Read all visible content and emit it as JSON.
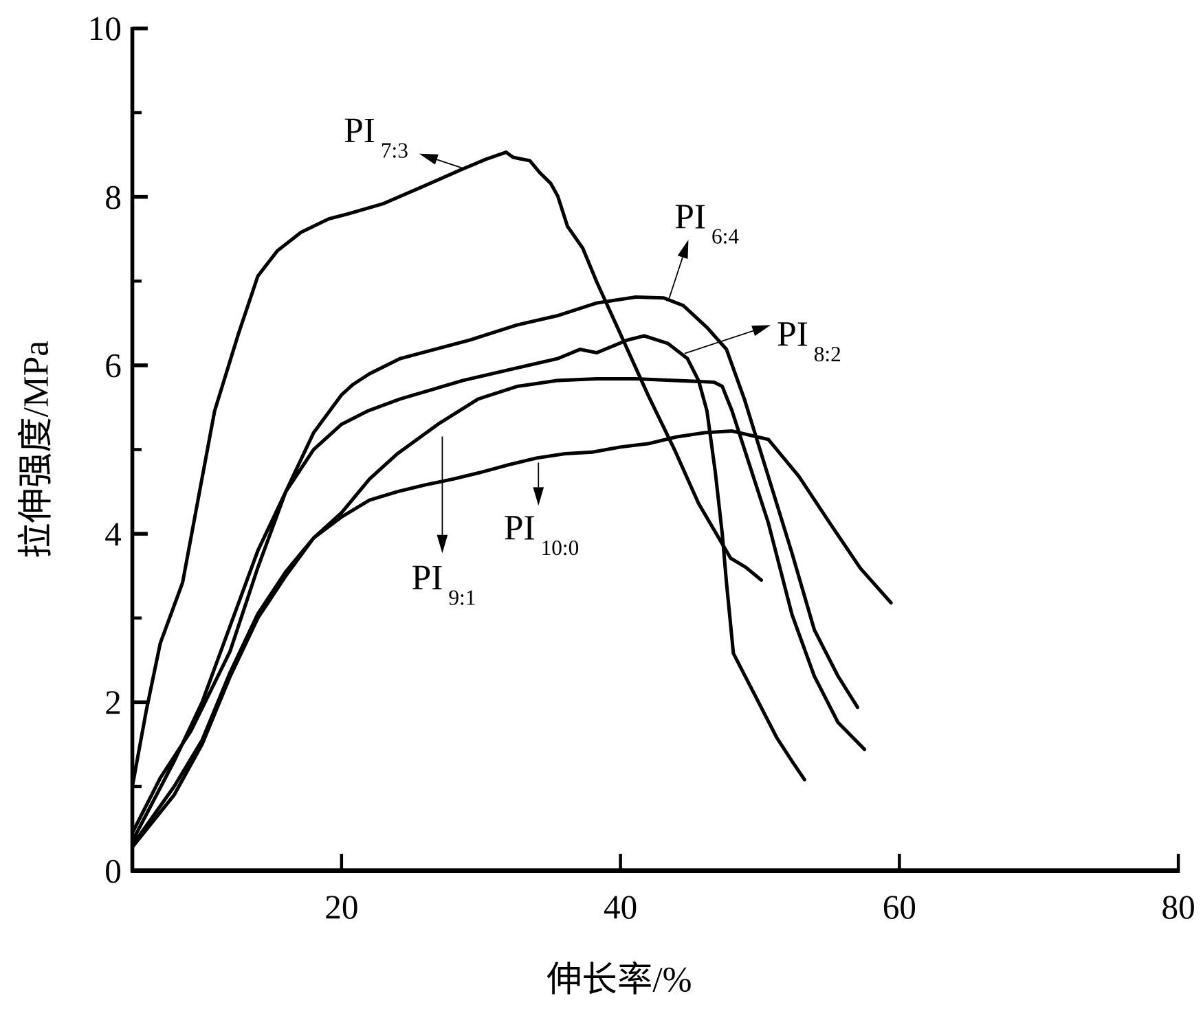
{
  "chart_data": {
    "type": "line",
    "title": "",
    "xlabel": "伸长率/%",
    "ylabel": "拉伸强度/MPa",
    "xlim": [
      5,
      80
    ],
    "ylim": [
      0,
      10
    ],
    "xticks": [
      20,
      40,
      60,
      80
    ],
    "yticks": [
      0,
      2,
      4,
      6,
      8,
      10
    ],
    "y_minor_step": 1,
    "grid": false,
    "legend": "none (inline arrow annotations)",
    "series": [
      {
        "name": "PI7:3",
        "label_main": "PI",
        "label_sub": "7:3",
        "x": [
          5,
          6,
          7,
          8.6,
          10.9,
          12.6,
          14.0,
          15.4,
          17.1,
          19.1,
          20.5,
          23.0,
          25.8,
          28.4,
          30.4,
          31.8,
          32.3,
          33.5,
          34.2,
          35.0,
          35.5,
          36.2,
          37.3,
          38.3,
          40.0,
          42.0,
          43.9,
          45.6,
          47.9,
          49.0,
          50.1
        ],
        "y": [
          1.0,
          1.9,
          2.7,
          3.42,
          5.46,
          6.37,
          7.06,
          7.36,
          7.58,
          7.74,
          7.8,
          7.92,
          8.12,
          8.31,
          8.45,
          8.53,
          8.47,
          8.43,
          8.29,
          8.16,
          8.01,
          7.65,
          7.39,
          6.99,
          6.37,
          5.64,
          4.99,
          4.36,
          3.71,
          3.6,
          3.45
        ]
      },
      {
        "name": "PI6:4",
        "label_main": "PI",
        "label_sub": "6:4",
        "x": [
          5,
          7,
          9.2,
          12,
          14,
          16,
          18,
          20,
          20.8,
          22,
          24.2,
          29.2,
          32.6,
          35.5,
          38.3,
          41.1,
          43.1,
          44.5,
          46.2,
          47.6,
          48.9,
          50.6,
          52.3,
          53.9,
          55.6,
          57.0
        ],
        "y": [
          0.45,
          1.1,
          1.66,
          2.6,
          3.6,
          4.5,
          5.2,
          5.65,
          5.77,
          5.9,
          6.08,
          6.3,
          6.48,
          6.59,
          6.74,
          6.81,
          6.8,
          6.71,
          6.45,
          6.19,
          5.59,
          4.68,
          3.77,
          2.86,
          2.31,
          1.94
        ]
      },
      {
        "name": "PI8:2",
        "label_main": "PI",
        "label_sub": "8:2",
        "x": [
          5,
          8,
          10,
          12,
          14,
          16,
          18,
          20,
          21.9,
          24.2,
          28.7,
          32.6,
          35.5,
          37.1,
          38.3,
          40.5,
          41.7,
          43.4,
          44.8,
          45.6,
          46.2,
          46.8,
          47.3,
          47.6,
          48.1,
          49.5,
          51.2,
          52.3,
          53.2
        ],
        "y": [
          0.35,
          1.3,
          2.0,
          2.9,
          3.8,
          4.5,
          5.0,
          5.3,
          5.46,
          5.6,
          5.82,
          5.97,
          6.08,
          6.19,
          6.15,
          6.3,
          6.35,
          6.26,
          6.08,
          5.82,
          5.46,
          4.73,
          4.0,
          3.42,
          2.58,
          2.13,
          1.58,
          1.3,
          1.08
        ]
      },
      {
        "name": "PI9:1",
        "label_main": "PI",
        "label_sub": "9:1",
        "x": [
          5,
          8,
          10,
          12,
          14,
          16,
          18,
          20,
          22,
          24,
          27,
          29.8,
          32.6,
          35.5,
          38.3,
          41.1,
          43.9,
          46.7,
          47.3,
          48,
          50.6,
          52.3,
          53.9,
          55.6,
          57.5
        ],
        "y": [
          0.28,
          0.9,
          1.5,
          2.3,
          3.0,
          3.5,
          3.95,
          4.25,
          4.65,
          4.95,
          5.31,
          5.6,
          5.75,
          5.82,
          5.84,
          5.84,
          5.82,
          5.8,
          5.75,
          5.46,
          4.13,
          3.04,
          2.31,
          1.76,
          1.44
        ]
      },
      {
        "name": "PI10:0",
        "label_main": "PI",
        "label_sub": "10:0",
        "x": [
          5,
          8,
          10,
          12,
          14,
          16,
          18,
          20,
          22,
          24,
          26,
          28,
          30,
          32,
          34,
          36,
          38,
          40,
          42,
          44,
          46,
          48,
          50.6,
          52.8,
          55,
          57.2,
          59.4
        ],
        "y": [
          0.3,
          1.0,
          1.55,
          2.35,
          3.05,
          3.55,
          3.95,
          4.2,
          4.4,
          4.5,
          4.58,
          4.65,
          4.73,
          4.82,
          4.9,
          4.95,
          4.97,
          5.03,
          5.07,
          5.15,
          5.2,
          5.22,
          5.12,
          4.68,
          4.13,
          3.59,
          3.18
        ]
      }
    ]
  }
}
